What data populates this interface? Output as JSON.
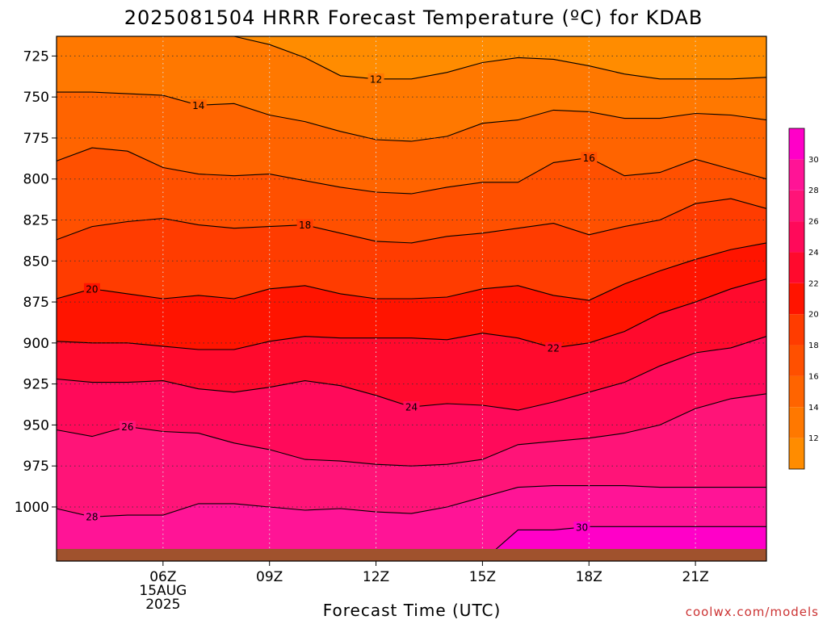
{
  "title": "2025081504 HRRR Forecast Temperature (ºC) for KDAB",
  "watermark": "coolwx.com/models",
  "chart_data": {
    "type": "contour",
    "title": "2025081504 HRRR Forecast Temperature (ºC) for KDAB",
    "xlabel": "Forecast Time (UTC)",
    "ylabel": "",
    "x_range_hours_utc": [
      3,
      23
    ],
    "y_range_pressure_hpa": [
      713,
      1033
    ],
    "y_reversed": true,
    "grid": true,
    "x_ticks": [
      {
        "hour": 6,
        "label": "06Z",
        "sub": [
          "15AUG",
          "2025"
        ]
      },
      {
        "hour": 9,
        "label": "09Z"
      },
      {
        "hour": 12,
        "label": "12Z"
      },
      {
        "hour": 15,
        "label": "15Z"
      },
      {
        "hour": 18,
        "label": "18Z"
      },
      {
        "hour": 21,
        "label": "21Z"
      }
    ],
    "y_ticks": [
      725,
      750,
      775,
      800,
      825,
      850,
      875,
      900,
      925,
      950,
      975,
      1000
    ],
    "colorbar": {
      "placement": "right",
      "levels": [
        10,
        12,
        14,
        16,
        18,
        20,
        22,
        24,
        26,
        28,
        30,
        32
      ],
      "labels": [
        12,
        14,
        16,
        18,
        20,
        22,
        24,
        26,
        28,
        30
      ],
      "colors": [
        "#ff8c00",
        "#ff7800",
        "#ff6400",
        "#ff5000",
        "#ff3c00",
        "#ff1400",
        "#ff0a2d",
        "#ff0a5a",
        "#ff1478",
        "#ff1496",
        "#ff00c8",
        "#ff00ff"
      ]
    },
    "ground_color": "#a0522d",
    "contour_hours": [
      3,
      4,
      5,
      6,
      7,
      8,
      9,
      10,
      11,
      12,
      13,
      14,
      15,
      16,
      17,
      18,
      19,
      20,
      21,
      22,
      23
    ],
    "contours": [
      {
        "value": 12,
        "label_at_hour": 12,
        "pressure": [
          713,
          713,
          713,
          713,
          713,
          713,
          718,
          726,
          737,
          739,
          739,
          735,
          729,
          726,
          727,
          731,
          736,
          739,
          739,
          739,
          738
        ]
      },
      {
        "value": 14,
        "label_at_hour": 7,
        "pressure": [
          747,
          747,
          748,
          749,
          755,
          754,
          761,
          765,
          771,
          776,
          777,
          774,
          766,
          764,
          758,
          759,
          763,
          763,
          760,
          761,
          764
        ]
      },
      {
        "value": 16,
        "label_at_hour": 18,
        "pressure": [
          789,
          781,
          783,
          793,
          797,
          798,
          797,
          801,
          805,
          808,
          809,
          805,
          802,
          802,
          790,
          787,
          798,
          796,
          788,
          794,
          800
        ]
      },
      {
        "value": 18,
        "label_at_hour": 10,
        "pressure": [
          837,
          829,
          826,
          824,
          828,
          830,
          829,
          828,
          833,
          838,
          839,
          835,
          833,
          830,
          827,
          834,
          829,
          825,
          815,
          812,
          818
        ]
      },
      {
        "value": 20,
        "label_at_hour": 4,
        "pressure": [
          873,
          867,
          870,
          873,
          871,
          873,
          867,
          865,
          870,
          873,
          873,
          872,
          867,
          865,
          871,
          874,
          864,
          856,
          849,
          843,
          839
        ]
      },
      {
        "value": 22,
        "label_at_hour": 17,
        "pressure": [
          899,
          900,
          900,
          902,
          904,
          904,
          899,
          896,
          897,
          897,
          897,
          898,
          894,
          897,
          903,
          900,
          893,
          882,
          875,
          867,
          861
        ]
      },
      {
        "value": 24,
        "label_at_hour": 13,
        "pressure": [
          922,
          924,
          924,
          923,
          928,
          930,
          927,
          923,
          926,
          932,
          939,
          937,
          938,
          941,
          936,
          930,
          924,
          914,
          906,
          903,
          896
        ]
      },
      {
        "value": 26,
        "label_at_hour": 5,
        "pressure": [
          953,
          957,
          951,
          954,
          955,
          961,
          965,
          971,
          972,
          974,
          975,
          974,
          971,
          962,
          960,
          958,
          955,
          950,
          940,
          934,
          931
        ]
      },
      {
        "value": 28,
        "label_at_hour": 4,
        "pressure": [
          1001,
          1006,
          1005,
          1005,
          998,
          998,
          1000,
          1002,
          1001,
          1003,
          1004,
          1000,
          994,
          988,
          987,
          987,
          987,
          988,
          988,
          988,
          988
        ]
      },
      {
        "value": 30,
        "label_at_hour": 17.8,
        "pressure": [
          1033,
          1033,
          1033,
          1033,
          1033,
          1033,
          1033,
          1033,
          1033,
          1033,
          1033,
          1033,
          1033,
          1014,
          1014,
          1012,
          1012,
          1012,
          1012,
          1012,
          1012
        ]
      }
    ]
  }
}
